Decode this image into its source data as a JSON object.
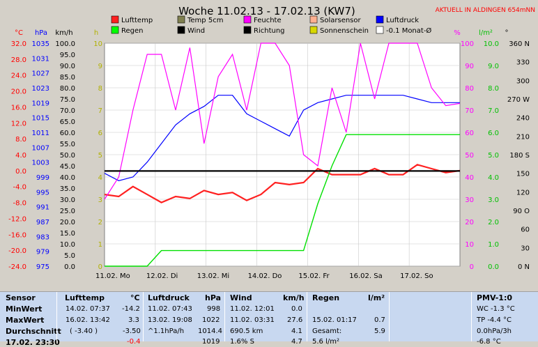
{
  "chart_data": {
    "type": "line",
    "title": "Woche 11.02.13 - 17.02.13 (KW7)",
    "station_note": "AKTUELL IN ALDINGEN 654mNN",
    "x_ticks": [
      "11.02.",
      "Mo",
      "12.02.",
      "Di",
      "13.02.",
      "Mi",
      "14.02.",
      "Do",
      "15.02.",
      "Fr",
      "16.02.",
      "Sa",
      "17.02.",
      "So"
    ],
    "axes": {
      "temp_c": {
        "unit": "°C",
        "ticks": [
          "32.0",
          "28.0",
          "24.0",
          "20.0",
          "16.0",
          "12.0",
          "8.0",
          "4.0",
          "0.0",
          "-4.0",
          "-8.0",
          "-12.0",
          "-16.0",
          "-20.0",
          "-24.0"
        ],
        "min": -24,
        "max": 32
      },
      "pressure": {
        "unit": "hPa",
        "ticks": [
          "1035",
          "1031",
          "1027",
          "1023",
          "1019",
          "1015",
          "1011",
          "1007",
          "1003",
          "999",
          "995",
          "991",
          "987",
          "983",
          "979",
          "975"
        ],
        "min": 975,
        "max": 1035
      },
      "wind": {
        "unit": "km/h",
        "ticks": [
          "100.0",
          "95.0",
          "90.0",
          "85.0",
          "80.0",
          "75.0",
          "70.0",
          "65.0",
          "60.0",
          "55.0",
          "50.0",
          "45.0",
          "40.0",
          "35.0",
          "30.0",
          "25.0",
          "20.0",
          "15.0",
          "10.0",
          "5.0",
          "0.0"
        ],
        "min": 0,
        "max": 100
      },
      "sun": {
        "unit": "h",
        "ticks": [
          "10",
          "9",
          "8",
          "7",
          "6",
          "5",
          "4",
          "3",
          "2",
          "1",
          "0"
        ],
        "min": 0,
        "max": 10
      },
      "humidity": {
        "unit": "%",
        "ticks": [
          "100",
          "90",
          "80",
          "70",
          "60",
          "50",
          "40",
          "30",
          "20",
          "10",
          "0"
        ],
        "min": 0,
        "max": 100
      },
      "rain": {
        "unit": "l/m²",
        "ticks": [
          "10.0",
          "9.0",
          "8.0",
          "7.0",
          "6.0",
          "5.0",
          "4.0",
          "3.0",
          "2.0",
          "1.0",
          "0.0"
        ],
        "min": 0,
        "max": 10
      },
      "direction": {
        "unit": "°",
        "ticks": [
          "360 N",
          "330",
          "300",
          "270 W",
          "240",
          "210",
          "180 S",
          "150",
          "120",
          "90 O",
          "60",
          "30",
          "0 N"
        ],
        "min": 0,
        "max": 360
      }
    },
    "legend": [
      {
        "label": "Lufttemp",
        "color": "#ff2020"
      },
      {
        "label": "Temp 5cm",
        "color": "#808050"
      },
      {
        "label": "Feuchte",
        "color": "#ff00ff"
      },
      {
        "label": "Solarsensor",
        "color": "#ffb090"
      },
      {
        "label": "Luftdruck",
        "color": "#0000ff"
      },
      {
        "label": "Regen",
        "color": "#00ff00"
      },
      {
        "label": "Wind",
        "color": "#000000"
      },
      {
        "label": "Richtung",
        "color": "#000000"
      },
      {
        "label": "Sonnenschein",
        "color": "#d8d800"
      },
      {
        "label": "-0.1 Monat-Ø",
        "color": "#ffffff"
      }
    ],
    "series": [
      {
        "name": "Lufttemp",
        "axis": "temp_c",
        "values": [
          -6.0,
          -6.5,
          -4.0,
          -6.0,
          -8.0,
          -6.5,
          -7.0,
          -5.0,
          -6.0,
          -5.5,
          -7.5,
          -6.0,
          -3.0,
          -3.5,
          -3.0,
          0.5,
          -1.0,
          -1.0,
          -1.0,
          0.5,
          -1.0,
          -1.0,
          1.5,
          0.5,
          -0.5,
          0.0
        ]
      },
      {
        "name": "Luftdruck",
        "axis": "pressure",
        "values": [
          1000,
          998,
          999,
          1003,
          1008,
          1013,
          1016,
          1018,
          1021,
          1021,
          1016,
          1014,
          1012,
          1010,
          1017,
          1019,
          1020,
          1021,
          1021,
          1021,
          1021,
          1021,
          1020,
          1019,
          1019,
          1019
        ]
      },
      {
        "name": "Feuchte",
        "axis": "humidity",
        "values": [
          30,
          40,
          70,
          95,
          95,
          70,
          98,
          55,
          85,
          95,
          70,
          100,
          100,
          90,
          50,
          45,
          80,
          60,
          100,
          75,
          100,
          100,
          100,
          80,
          72,
          73
        ]
      },
      {
        "name": "Regen",
        "axis": "rain",
        "values": [
          0.0,
          0.0,
          0.0,
          0.0,
          0.7,
          0.7,
          0.7,
          0.7,
          0.7,
          0.7,
          0.7,
          0.7,
          0.7,
          0.7,
          0.7,
          2.8,
          4.5,
          5.9,
          5.9,
          5.9,
          5.9,
          5.9,
          5.9,
          5.9,
          5.9,
          5.9
        ]
      },
      {
        "name": "Monat-Ø",
        "axis": "temp_c",
        "values": [
          -0.1,
          -0.1
        ]
      }
    ]
  },
  "table": {
    "sensor": {
      "title": "Sensor",
      "rows": [
        "MinWert",
        "MaxWert",
        "Durchschnitt",
        "17.02. 23:30"
      ]
    },
    "lufttemp": {
      "title": "Lufttemp",
      "unit": "°C",
      "rows": [
        [
          "14.02.  07:37",
          "-14.2"
        ],
        [
          "16.02.  13:42",
          "3.3"
        ],
        [
          "( -3.40 )",
          "-3.50"
        ],
        [
          "",
          "-0.4"
        ]
      ]
    },
    "luftdruck": {
      "title": "Luftdruck",
      "unit": "hPa",
      "rows": [
        [
          "11.02.  07:43",
          "998"
        ],
        [
          "13.02.  19:08",
          "1022"
        ],
        [
          "^1.1hPa/h",
          "1014.4"
        ],
        [
          "",
          "1019"
        ]
      ]
    },
    "wind": {
      "title": "Wind",
      "unit": "km/h",
      "rows": [
        [
          "11.02.  12:01",
          "0.0"
        ],
        [
          "11.02.  03:31",
          "27.6"
        ],
        [
          "690.5 km",
          "4.1"
        ],
        [
          "1.6% S",
          "4.7"
        ]
      ]
    },
    "regen": {
      "title": "Regen",
      "unit": "l/m²",
      "rows": [
        [
          "15.02.  01:17",
          "0.7"
        ],
        [
          "Gesamt:",
          "5.9"
        ],
        [
          "5.6 l/m²",
          ""
        ],
        [
          "",
          ""
        ]
      ]
    },
    "pmv": {
      "title": "PMV-1:0",
      "rows": [
        "WC -1.3 °C",
        "TP -4.4 °C",
        "0.0hPa/3h",
        "-6.8 °C"
      ]
    }
  }
}
